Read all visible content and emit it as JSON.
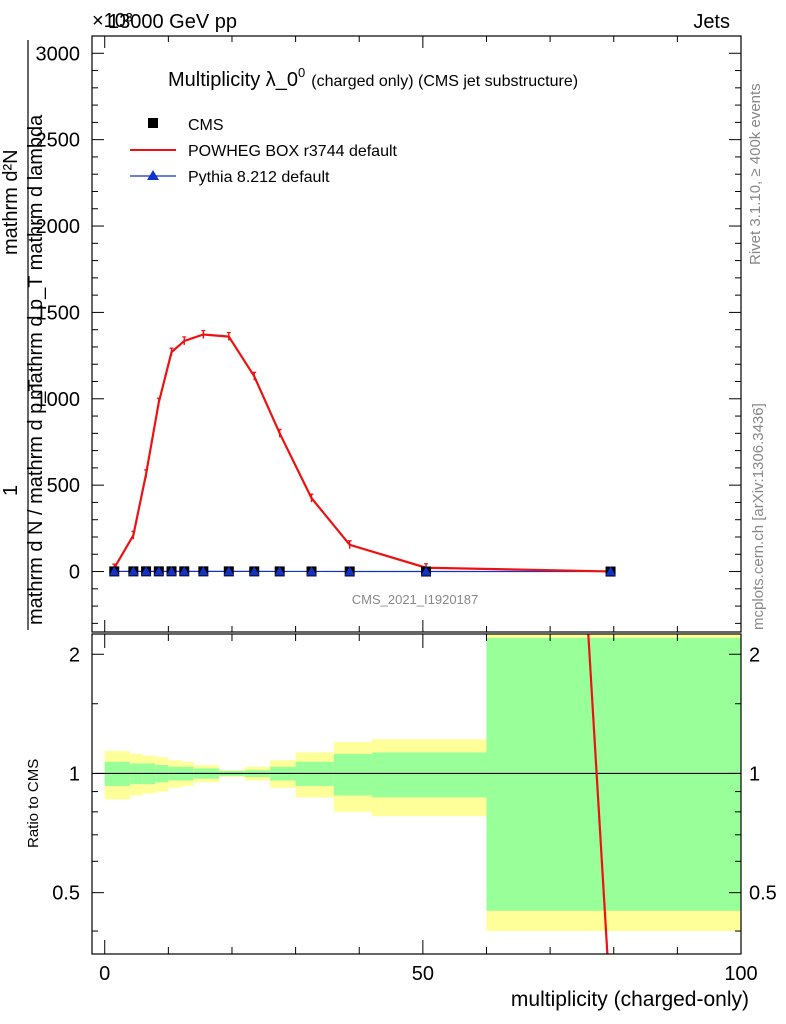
{
  "header": {
    "left": "13000 GeV pp",
    "right": "Jets",
    "exponent": "×10³"
  },
  "side_labels": {
    "rivet": "Rivet 3.1.10, ≥ 400k events",
    "mcplots": "mcplots.cern.ch [arXiv:1306.3436]"
  },
  "watermark": "CMS_2021_I1920187",
  "chart_data": [
    {
      "type": "line",
      "title": "Multiplicity λ_0^0 (charged only) (CMS jet substructure)",
      "title_main": "Multiplicity λ_0",
      "title_sup": "0",
      "title_tail": "(charged only) (CMS jet substructure)",
      "ylabel_top": "mathrm d²N",
      "ylabel_mid": "mathrm d p_T mathrm d lambda",
      "ylabel_one": "1",
      "ylabel_bottom": "mathrm d N / mathrm d p_T",
      "xlim": [
        -2,
        100
      ],
      "ylim": [
        -350,
        3100
      ],
      "yticks": [
        0,
        500,
        1000,
        1500,
        2000,
        2500,
        3000
      ],
      "ytick_labels": [
        "0",
        "500",
        "1000",
        "1500",
        "2000",
        "2500",
        "3000"
      ],
      "legend": [
        {
          "name": "CMS",
          "marker": "square",
          "color": "#000000"
        },
        {
          "name": "POWHEG BOX r3744 default",
          "marker": "line",
          "color": "#ee1111"
        },
        {
          "name": "Pythia 8.212 default",
          "marker": "triangle",
          "color": "#1133cc"
        }
      ],
      "series": [
        {
          "name": "CMS",
          "x": [
            1.5,
            4.5,
            6.5,
            8.5,
            10.5,
            12.5,
            15.5,
            19.5,
            23.5,
            27.5,
            32.5,
            38.5,
            50.5,
            79.5
          ],
          "values": [
            0.7,
            0.9,
            1.1,
            1.0,
            1.2,
            1.1,
            1.0,
            0.9,
            0.8,
            0.7,
            0.5,
            0.3,
            0.15,
            0.01
          ]
        },
        {
          "name": "POWHEG BOX r3744 default",
          "x": [
            1.5,
            4.5,
            6.5,
            8.5,
            10.5,
            12.5,
            15.5,
            19.5,
            23.5,
            27.5,
            32.5,
            38.5,
            50.5,
            79.5
          ],
          "values": [
            20,
            210,
            565,
            980,
            1270,
            1335,
            1372,
            1360,
            1130,
            800,
            425,
            155,
            22,
            0.5
          ]
        },
        {
          "name": "Pythia 8.212 default",
          "x": [
            1.5,
            4.5,
            6.5,
            8.5,
            10.5,
            12.5,
            15.5,
            19.5,
            23.5,
            27.5,
            32.5,
            38.5,
            50.5,
            79.5
          ],
          "values": [
            0.7,
            0.9,
            1.1,
            1.0,
            1.2,
            1.1,
            1.0,
            0.9,
            0.8,
            0.7,
            0.5,
            0.3,
            0.15,
            0.01
          ]
        }
      ]
    },
    {
      "type": "area",
      "ylabel": "Ratio to CMS",
      "xlabel": "multiplicity (charged-only)",
      "xlim": [
        -2,
        100
      ],
      "ylim": [
        0.35,
        2.25
      ],
      "xticks": [
        0,
        50,
        100
      ],
      "xtick_labels": [
        "0",
        "50",
        "100"
      ],
      "yticks": [
        0.5,
        1,
        2
      ],
      "ytick_labels": [
        "0.5",
        "1",
        "2"
      ],
      "reference": 1,
      "bands": {
        "bins": [
          [
            0,
            4
          ],
          [
            4,
            6
          ],
          [
            6,
            8
          ],
          [
            8,
            10
          ],
          [
            10,
            12
          ],
          [
            12,
            14
          ],
          [
            14,
            18
          ],
          [
            18,
            22
          ],
          [
            22,
            26
          ],
          [
            26,
            30
          ],
          [
            30,
            36
          ],
          [
            36,
            42
          ],
          [
            42,
            60
          ],
          [
            60,
            100
          ]
        ],
        "green": [
          [
            0.93,
            1.07
          ],
          [
            0.94,
            1.06
          ],
          [
            0.94,
            1.06
          ],
          [
            0.95,
            1.05
          ],
          [
            0.96,
            1.04
          ],
          [
            0.96,
            1.04
          ],
          [
            0.97,
            1.03
          ],
          [
            0.985,
            1.015
          ],
          [
            0.98,
            1.02
          ],
          [
            0.96,
            1.04
          ],
          [
            0.93,
            1.07
          ],
          [
            0.88,
            1.12
          ],
          [
            0.87,
            1.13
          ],
          [
            0.45,
            2.2
          ]
        ],
        "yellow": [
          [
            0.86,
            1.14
          ],
          [
            0.88,
            1.12
          ],
          [
            0.89,
            1.11
          ],
          [
            0.9,
            1.1
          ],
          [
            0.92,
            1.08
          ],
          [
            0.93,
            1.07
          ],
          [
            0.95,
            1.05
          ],
          [
            0.98,
            1.02
          ],
          [
            0.96,
            1.04
          ],
          [
            0.92,
            1.08
          ],
          [
            0.87,
            1.13
          ],
          [
            0.8,
            1.2
          ],
          [
            0.78,
            1.22
          ],
          [
            0.4,
            2.25
          ]
        ]
      },
      "powheg_ratio_line": {
        "x": [
          76,
          79
        ],
        "values": [
          2.25,
          0.35
        ]
      }
    }
  ]
}
